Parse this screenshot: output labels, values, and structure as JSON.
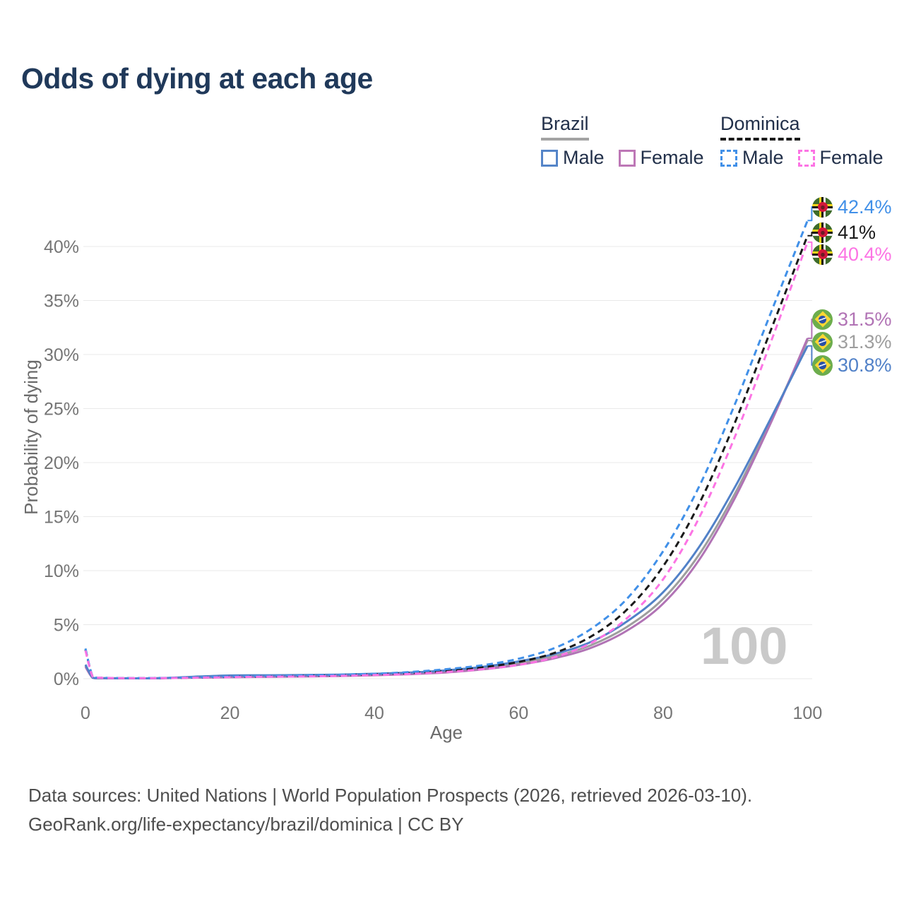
{
  "title": "Odds of dying at each age",
  "legend": {
    "groups": [
      {
        "country": "Brazil",
        "items": [
          {
            "label": "Male",
            "color": "#5585c8",
            "dash": "solid"
          },
          {
            "label": "Female",
            "color": "#bd77b6",
            "dash": "solid"
          }
        ]
      },
      {
        "country": "Dominica",
        "items": [
          {
            "label": "Male",
            "color": "#4190e8",
            "dash": "dashed"
          },
          {
            "label": "Female",
            "color": "#fc74e4",
            "dash": "dashed"
          }
        ]
      }
    ]
  },
  "watermark": {
    "text": "100"
  },
  "chart_data": {
    "type": "line",
    "title": "Odds of dying at each age",
    "xlabel": "Age",
    "ylabel": "Probability of dying",
    "xlim": [
      0,
      100
    ],
    "ylim": [
      0,
      44
    ],
    "grid": true,
    "legend_position": "top-right",
    "x_ticks": [
      {
        "v": 0,
        "label": "0"
      },
      {
        "v": 20,
        "label": "20"
      },
      {
        "v": 40,
        "label": "40"
      },
      {
        "v": 60,
        "label": "60"
      },
      {
        "v": 80,
        "label": "80"
      },
      {
        "v": 100,
        "label": "100"
      }
    ],
    "y_ticks": [
      {
        "v": 0,
        "label": "0%"
      },
      {
        "v": 5,
        "label": "5%"
      },
      {
        "v": 10,
        "label": "10%"
      },
      {
        "v": 15,
        "label": "15%"
      },
      {
        "v": 20,
        "label": "20%"
      },
      {
        "v": 25,
        "label": "25%"
      },
      {
        "v": 30,
        "label": "30%"
      },
      {
        "v": 35,
        "label": "35%"
      },
      {
        "v": 40,
        "label": "40%"
      }
    ],
    "ages": [
      0,
      1,
      2,
      5,
      10,
      15,
      20,
      25,
      30,
      35,
      40,
      45,
      50,
      55,
      60,
      65,
      70,
      75,
      80,
      85,
      90,
      95,
      100
    ],
    "series": [
      {
        "id": "brazil-both",
        "name": "Brazil — Both sexes",
        "country": "Brazil",
        "sex": "Both",
        "color": "#9e9e9e",
        "dash": "solid",
        "end_label": "31.3%",
        "values": [
          1.2,
          0.09,
          0.05,
          0.04,
          0.04,
          0.13,
          0.22,
          0.25,
          0.27,
          0.31,
          0.39,
          0.5,
          0.68,
          0.98,
          1.45,
          2.1,
          3.1,
          4.8,
          7.4,
          11.5,
          17.2,
          24.0,
          31.3
        ]
      },
      {
        "id": "brazil-female",
        "name": "Brazil — Female",
        "country": "Brazil",
        "sex": "Female",
        "color": "#b173b5",
        "dash": "solid",
        "end_label": "31.5%",
        "values": [
          1.1,
          0.08,
          0.05,
          0.03,
          0.04,
          0.09,
          0.14,
          0.17,
          0.2,
          0.25,
          0.32,
          0.42,
          0.58,
          0.86,
          1.28,
          1.9,
          2.85,
          4.45,
          6.95,
          11.0,
          16.8,
          23.8,
          31.5
        ]
      },
      {
        "id": "brazil-male",
        "name": "Brazil — Male",
        "country": "Brazil",
        "sex": "Male",
        "color": "#5181c8",
        "dash": "solid",
        "end_label": "30.8%",
        "values": [
          1.3,
          0.1,
          0.06,
          0.04,
          0.05,
          0.18,
          0.3,
          0.32,
          0.34,
          0.38,
          0.46,
          0.57,
          0.78,
          1.1,
          1.6,
          2.3,
          3.4,
          5.3,
          8.0,
          12.2,
          17.8,
          24.2,
          30.8
        ]
      },
      {
        "id": "dominica-both",
        "name": "Dominica — Both sexes",
        "country": "Dominica",
        "sex": "Both",
        "color": "#1a1a1a",
        "dash": "dashed",
        "end_label": "41%",
        "values": [
          2.7,
          0.19,
          0.09,
          0.05,
          0.06,
          0.1,
          0.17,
          0.21,
          0.26,
          0.31,
          0.41,
          0.53,
          0.74,
          1.05,
          1.55,
          2.4,
          3.9,
          6.4,
          10.4,
          16.2,
          23.8,
          32.4,
          41.0
        ]
      },
      {
        "id": "dominica-male",
        "name": "Dominica — Male",
        "country": "Dominica",
        "sex": "Male",
        "color": "#4190e8",
        "dash": "dashed",
        "end_label": "42.4%",
        "values": [
          2.8,
          0.2,
          0.1,
          0.06,
          0.07,
          0.12,
          0.2,
          0.25,
          0.3,
          0.36,
          0.46,
          0.62,
          0.88,
          1.25,
          1.85,
          2.85,
          4.6,
          7.4,
          11.8,
          17.8,
          25.5,
          34.0,
          42.4
        ]
      },
      {
        "id": "dominica-female",
        "name": "Dominica — Female",
        "country": "Dominica",
        "sex": "Female",
        "color": "#fc74e4",
        "dash": "dashed",
        "end_label": "40.4%",
        "values": [
          2.6,
          0.18,
          0.09,
          0.05,
          0.05,
          0.09,
          0.14,
          0.18,
          0.21,
          0.26,
          0.34,
          0.44,
          0.62,
          0.88,
          1.28,
          2.0,
          3.3,
          5.6,
          9.2,
          14.9,
          22.5,
          31.3,
          40.4
        ]
      }
    ]
  },
  "end_labels": [
    {
      "series": "dominica-male",
      "value": "42.4%",
      "color": "#4190e8",
      "flag": "dominica"
    },
    {
      "series": "dominica-both",
      "value": "41%",
      "color": "#1a1a1a",
      "flag": "dominica"
    },
    {
      "series": "dominica-female",
      "value": "40.4%",
      "color": "#fc74e4",
      "flag": "dominica"
    },
    {
      "series": "brazil-female",
      "value": "31.5%",
      "color": "#b173b5",
      "flag": "brazil"
    },
    {
      "series": "brazil-both",
      "value": "31.3%",
      "color": "#9e9e9e",
      "flag": "brazil"
    },
    {
      "series": "brazil-male",
      "value": "30.8%",
      "color": "#5181c8",
      "flag": "brazil"
    }
  ],
  "footer": {
    "line1": "Data sources: United Nations | World Population Prospects (2026, retrieved 2026-03-10).",
    "line2": "GeoRank.org/life-expectancy/brazil/dominica | CC BY"
  }
}
